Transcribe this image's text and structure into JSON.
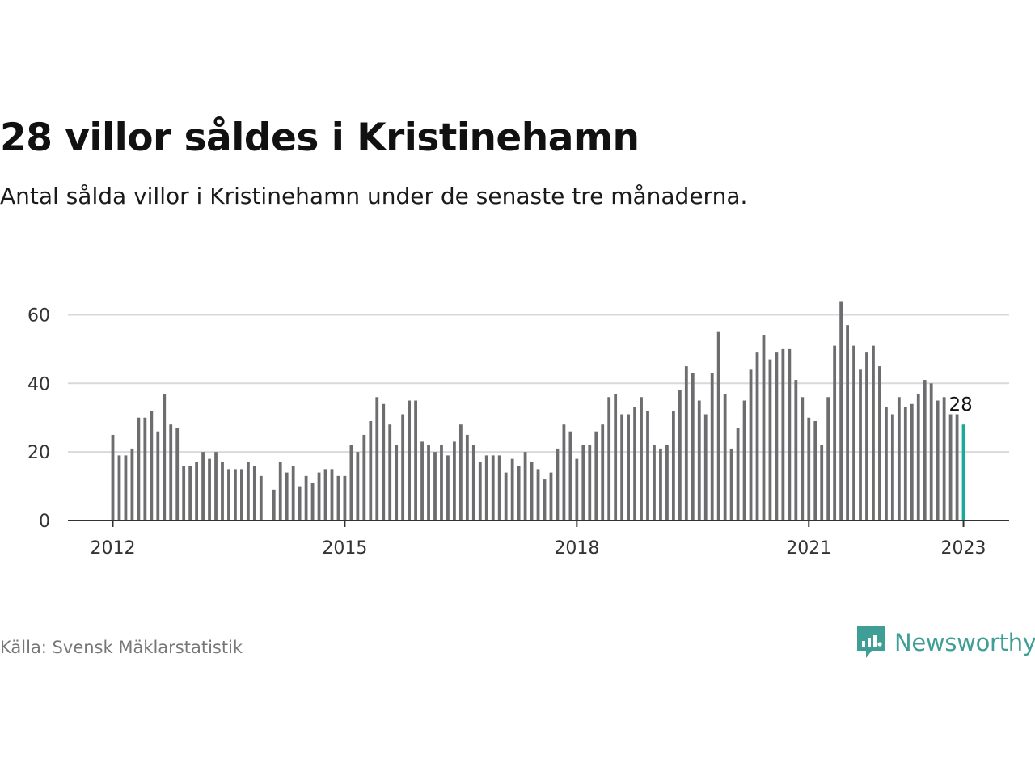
{
  "title": "28 villor såldes i Kristinehamn",
  "subtitle": "Antal sålda villor i Kristinehamn under de senaste tre månaderna.",
  "source": "Källa: Svensk Mäklarstatistik",
  "brand": {
    "name": "Newsworthy",
    "color": "#3f9e95",
    "icon": "newsworthy-logo-icon"
  },
  "colors": {
    "bar": "#6d6d70",
    "highlight": "#18a99b",
    "grid": "#d9d9d9",
    "axis": "#333333"
  },
  "chart_data": {
    "type": "bar",
    "title": "28 villor såldes i Kristinehamn",
    "subtitle": "Antal sålda villor i Kristinehamn under de senaste tre månaderna.",
    "start": "2012-01",
    "x_ticks": [
      "2012",
      "2015",
      "2018",
      "2021",
      "2023"
    ],
    "y_ticks": [
      0,
      20,
      40,
      60
    ],
    "ylim": [
      0,
      66
    ],
    "grid": true,
    "values": [
      25,
      19,
      19,
      21,
      30,
      30,
      32,
      26,
      37,
      28,
      27,
      16,
      16,
      17,
      20,
      18,
      20,
      17,
      15,
      15,
      15,
      17,
      16,
      13,
      null,
      9,
      17,
      14,
      16,
      10,
      13,
      11,
      14,
      15,
      15,
      13,
      13,
      22,
      20,
      25,
      29,
      36,
      34,
      28,
      22,
      31,
      35,
      35,
      23,
      22,
      20,
      22,
      19,
      23,
      28,
      25,
      22,
      17,
      19,
      19,
      19,
      14,
      18,
      16,
      20,
      17,
      15,
      12,
      14,
      21,
      28,
      26,
      18,
      22,
      22,
      26,
      28,
      36,
      37,
      31,
      31,
      33,
      36,
      32,
      22,
      21,
      22,
      32,
      38,
      45,
      43,
      35,
      31,
      43,
      55,
      37,
      21,
      27,
      35,
      44,
      49,
      54,
      47,
      49,
      50,
      50,
      41,
      36,
      30,
      29,
      22,
      36,
      51,
      64,
      57,
      51,
      44,
      49,
      51,
      45,
      33,
      31,
      36,
      33,
      34,
      37,
      41,
      40,
      35,
      36,
      31,
      31,
      28
    ],
    "highlight_label": "28"
  }
}
